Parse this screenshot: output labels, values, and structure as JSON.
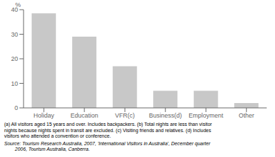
{
  "chart_data": {
    "type": "bar",
    "categories": [
      "Holiday",
      "Education",
      "VFR(c)",
      "Business(d)",
      "Employment",
      "Other"
    ],
    "values": [
      38.5,
      29.0,
      17.0,
      7.0,
      7.0,
      2.0
    ],
    "color": "#c8c8c8",
    "ylabel": "%",
    "ylim": [
      0,
      40
    ],
    "yticks": [
      0,
      10,
      20,
      30,
      40
    ],
    "annotations": [
      "(a) All visitors aged 15 years and over. Includes backpackers. (b) Total nights are less than visitor\nnights because nights spent in transit are excluded. (c) Visiting friends and relatives. (d) Includes\nvisitors who attended a convention or conference.",
      "Source: Tourism Research Australia, 2007, 'International Visitors in Australia', December quarter\n        2006, Tourism Australia, Canberra."
    ]
  }
}
